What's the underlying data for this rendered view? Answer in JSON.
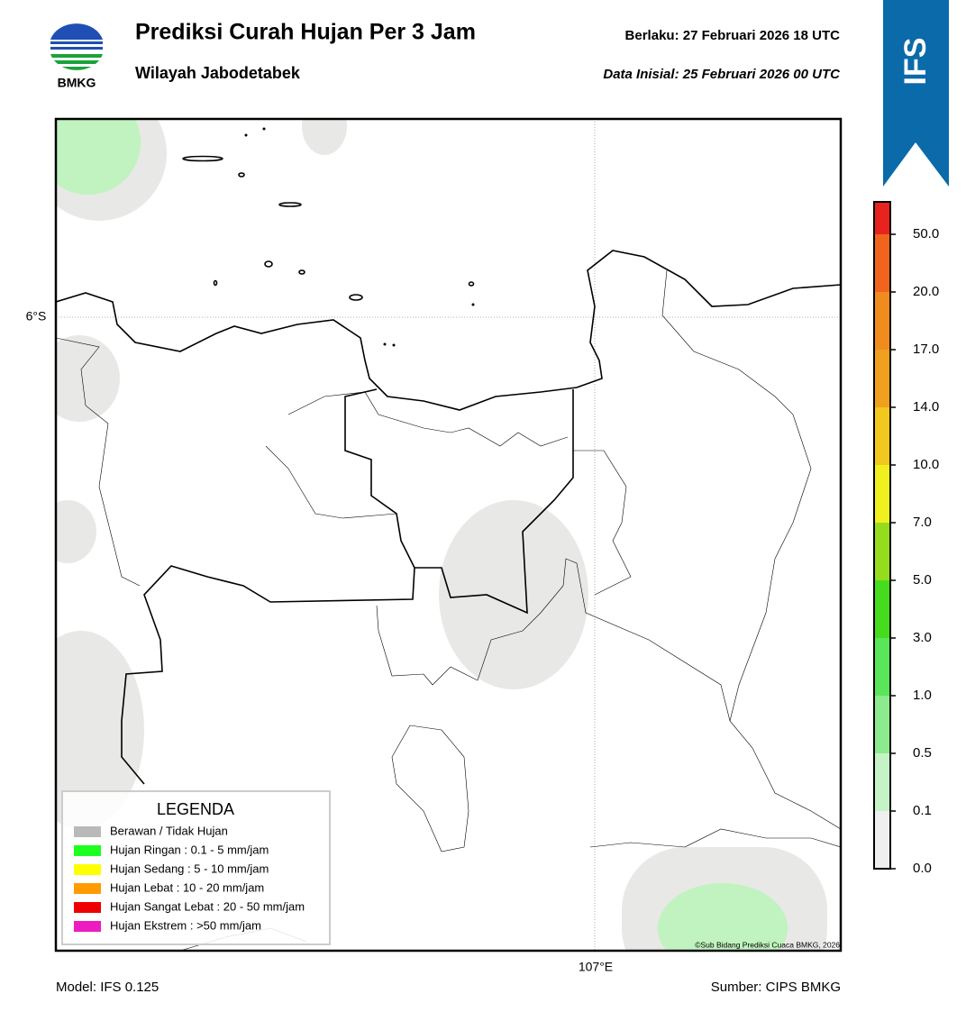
{
  "header": {
    "title": "Prediksi Curah Hujan Per 3 Jam",
    "subtitle": "Wilayah Jabodetabek",
    "valid": "Berlaku:  27 Februari 2026 18 UTC",
    "initial": "Data Inisial:  25 Februari 2026 00 UTC",
    "logo_text": "BMKG",
    "badge": "IFS"
  },
  "map": {
    "lat_label": "6°S",
    "lon_label": "107°E",
    "copyright": "©Sub Bidang Prediksi Cuaca BMKG, 2026"
  },
  "legend": {
    "title": "LEGENDA",
    "items": [
      {
        "label": "Berawan / Tidak Hujan",
        "color": "#b9b9b9"
      },
      {
        "label": "Hujan Ringan : 0.1 - 5 mm/jam",
        "color": "#1dff1d"
      },
      {
        "label": "Hujan Sedang : 5 - 10 mm/jam",
        "color": "#ffff00"
      },
      {
        "label": "Hujan Lebat : 10 - 20 mm/jam",
        "color": "#ff9b00"
      },
      {
        "label": "Hujan Sangat Lebat : 20 - 50 mm/jam",
        "color": "#ee0000"
      },
      {
        "label": "Hujan Ekstrem : >50 mm/jam",
        "color": "#ec1cc0"
      }
    ]
  },
  "colorbar": {
    "ticks": [
      "0.0",
      "0.1",
      "0.5",
      "1.0",
      "3.0",
      "5.0",
      "7.0",
      "10.0",
      "14.0",
      "17.0",
      "20.0",
      "50.0"
    ],
    "colors": [
      "#efefef",
      "#c6f3c6",
      "#8ceb8c",
      "#5ae65a",
      "#46dc1e",
      "#96dc1e",
      "#f0f01e",
      "#f0c81e",
      "#f0a01e",
      "#f08c1e",
      "#f0641e",
      "#e8231e",
      "#e61cc8"
    ]
  },
  "footer": {
    "model": "Model: IFS 0.125",
    "source": "Sumber: CIPS BMKG"
  }
}
